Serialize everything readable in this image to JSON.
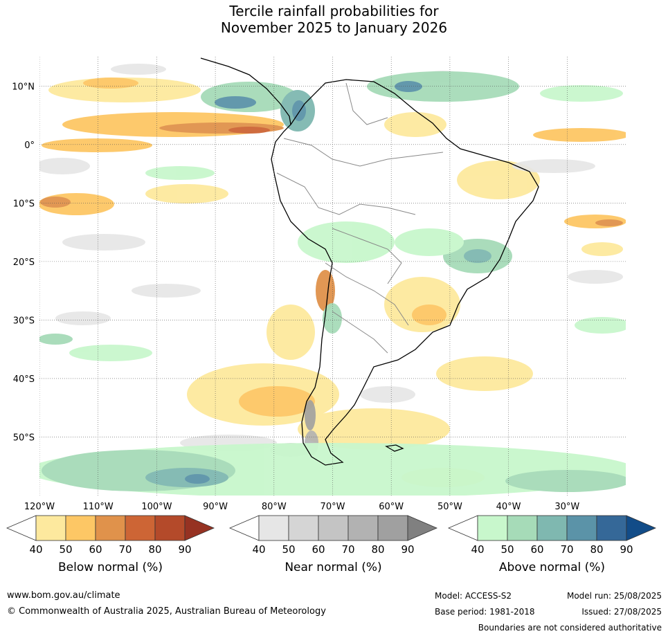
{
  "title": {
    "line1": "Tercile rainfall probabilities for",
    "line2": "November 2025 to January 2026"
  },
  "map": {
    "lat_ticks": [
      "10°N",
      "0°",
      "10°S",
      "20°S",
      "30°S",
      "40°S",
      "50°S"
    ],
    "lon_ticks": [
      "120°W",
      "110°W",
      "100°W",
      "90°W",
      "80°W",
      "70°W",
      "60°W",
      "50°W",
      "40°W",
      "30°W"
    ],
    "lat_range": [
      -60,
      15
    ],
    "lon_range": [
      -120,
      -20
    ]
  },
  "colorbars": [
    {
      "id": "below",
      "title": "Below normal (%)",
      "labels": [
        "40",
        "50",
        "60",
        "70",
        "80",
        "90"
      ],
      "colors": [
        "#ffffff",
        "#fde99e",
        "#fdc765",
        "#e0924b",
        "#cd6535",
        "#b44a2a",
        "#963222"
      ]
    },
    {
      "id": "near",
      "title": "Near normal (%)",
      "labels": [
        "40",
        "50",
        "60",
        "70",
        "80",
        "90"
      ],
      "colors": [
        "#ffffff",
        "#e6e6e6",
        "#d5d5d5",
        "#c4c4c4",
        "#b2b2b2",
        "#a0a0a0",
        "#808080"
      ]
    },
    {
      "id": "above",
      "title": "Above normal (%)",
      "labels": [
        "40",
        "50",
        "60",
        "70",
        "80",
        "90"
      ],
      "colors": [
        "#ffffff",
        "#c8f7cc",
        "#a6dbb8",
        "#7fb8b0",
        "#5b93a8",
        "#356898",
        "#124c88"
      ]
    }
  ],
  "footer": {
    "url": "www.bom.gov.au/climate",
    "copyright": "© Commonwealth of Australia 2025, Australian Bureau of Meteorology",
    "model": "Model: ACCESS-S2",
    "model_run": "Model run: 25/08/2025",
    "base_period": "Base period: 1981-2018",
    "issued": "Issued: 27/08/2025",
    "disclaimer": "Boundaries are not considered authoritative"
  }
}
